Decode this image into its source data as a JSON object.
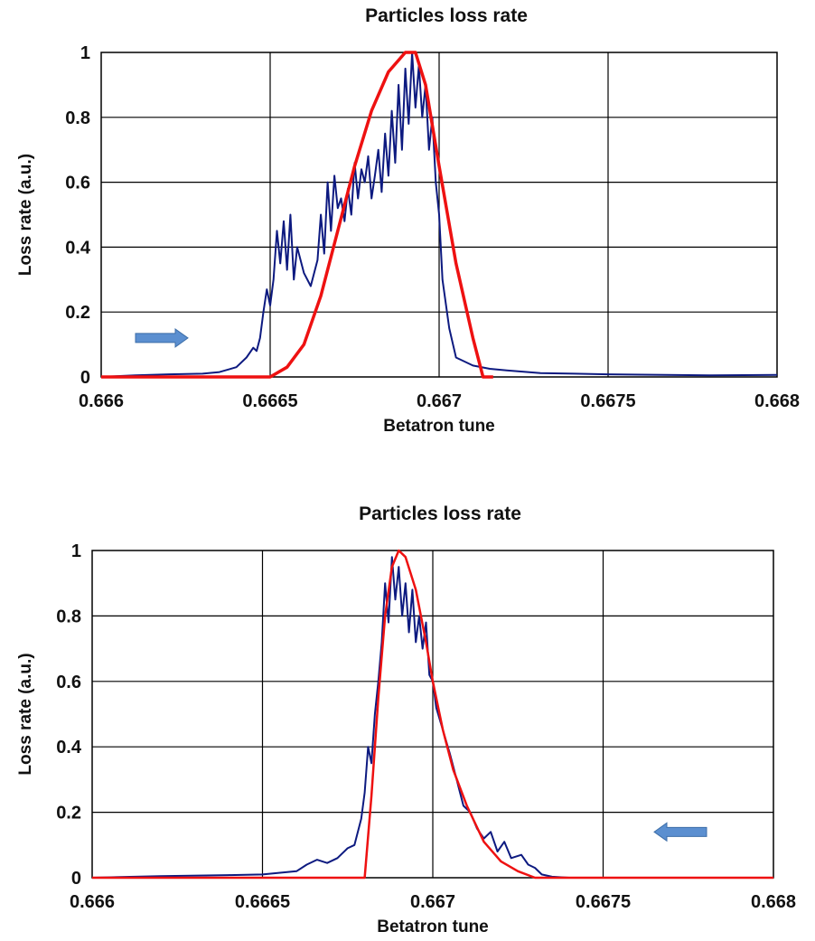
{
  "chart_data": [
    {
      "type": "line",
      "title": "Particles loss rate",
      "xlabel": "Betatron tune",
      "ylabel": "Loss rate (a.u.)",
      "xlim": [
        0.666,
        0.668
      ],
      "ylim": [
        0,
        1
      ],
      "x_ticks": [
        "0.666",
        "0.6665",
        "0.667",
        "0.6675",
        "0.668"
      ],
      "y_ticks": [
        "0",
        "0.2",
        "0.4",
        "0.6",
        "0.8",
        "1"
      ],
      "grid": true,
      "annotation": "arrow pointing right",
      "series": [
        {
          "color": "#0d1a80",
          "points": [
            [
              0.666,
              0.0
            ],
            [
              0.6661,
              0.005
            ],
            [
              0.6662,
              0.008
            ],
            [
              0.6663,
              0.01
            ],
            [
              0.66635,
              0.015
            ],
            [
              0.6664,
              0.03
            ],
            [
              0.66643,
              0.06
            ],
            [
              0.66645,
              0.09
            ],
            [
              0.66646,
              0.08
            ],
            [
              0.66647,
              0.12
            ],
            [
              0.66648,
              0.2
            ],
            [
              0.66649,
              0.27
            ],
            [
              0.6665,
              0.22
            ],
            [
              0.66651,
              0.3
            ],
            [
              0.66652,
              0.45
            ],
            [
              0.66653,
              0.35
            ],
            [
              0.66654,
              0.48
            ],
            [
              0.66655,
              0.33
            ],
            [
              0.66656,
              0.5
            ],
            [
              0.66657,
              0.3
            ],
            [
              0.66658,
              0.4
            ],
            [
              0.6666,
              0.32
            ],
            [
              0.66662,
              0.28
            ],
            [
              0.66664,
              0.36
            ],
            [
              0.66665,
              0.5
            ],
            [
              0.66666,
              0.38
            ],
            [
              0.66667,
              0.6
            ],
            [
              0.66668,
              0.45
            ],
            [
              0.66669,
              0.62
            ],
            [
              0.6667,
              0.52
            ],
            [
              0.66671,
              0.55
            ],
            [
              0.66672,
              0.48
            ],
            [
              0.66673,
              0.58
            ],
            [
              0.66674,
              0.5
            ],
            [
              0.66675,
              0.66
            ],
            [
              0.66676,
              0.55
            ],
            [
              0.66677,
              0.64
            ],
            [
              0.66678,
              0.6
            ],
            [
              0.66679,
              0.68
            ],
            [
              0.6668,
              0.55
            ],
            [
              0.66681,
              0.62
            ],
            [
              0.66682,
              0.7
            ],
            [
              0.66683,
              0.57
            ],
            [
              0.66684,
              0.75
            ],
            [
              0.66685,
              0.62
            ],
            [
              0.66686,
              0.82
            ],
            [
              0.66687,
              0.66
            ],
            [
              0.66688,
              0.9
            ],
            [
              0.66689,
              0.7
            ],
            [
              0.6669,
              0.95
            ],
            [
              0.66691,
              0.78
            ],
            [
              0.66692,
              1.0
            ],
            [
              0.66693,
              0.83
            ],
            [
              0.66694,
              0.96
            ],
            [
              0.66695,
              0.8
            ],
            [
              0.66696,
              0.9
            ],
            [
              0.66697,
              0.7
            ],
            [
              0.66698,
              0.8
            ],
            [
              0.66699,
              0.6
            ],
            [
              0.667,
              0.5
            ],
            [
              0.66701,
              0.3
            ],
            [
              0.66703,
              0.15
            ],
            [
              0.66705,
              0.06
            ],
            [
              0.6671,
              0.035
            ],
            [
              0.66715,
              0.025
            ],
            [
              0.6672,
              0.02
            ],
            [
              0.6673,
              0.012
            ],
            [
              0.6674,
              0.01
            ],
            [
              0.6675,
              0.008
            ],
            [
              0.6676,
              0.007
            ],
            [
              0.6678,
              0.005
            ],
            [
              0.668,
              0.006
            ]
          ]
        },
        {
          "color": "#ee1111",
          "points": [
            [
              0.666,
              0.0
            ],
            [
              0.6665,
              0.0
            ],
            [
              0.66655,
              0.03
            ],
            [
              0.6666,
              0.1
            ],
            [
              0.66665,
              0.25
            ],
            [
              0.6667,
              0.45
            ],
            [
              0.66675,
              0.65
            ],
            [
              0.6668,
              0.82
            ],
            [
              0.66685,
              0.94
            ],
            [
              0.6669,
              1.0
            ],
            [
              0.66693,
              1.0
            ],
            [
              0.66696,
              0.9
            ],
            [
              0.667,
              0.65
            ],
            [
              0.66705,
              0.35
            ],
            [
              0.6671,
              0.12
            ],
            [
              0.66713,
              0.0
            ],
            [
              0.66716,
              0.0
            ]
          ]
        }
      ]
    },
    {
      "type": "line",
      "title": "Particles loss rate",
      "xlabel": "Betatron tune",
      "ylabel": "Loss rate (a.u.)",
      "xlim": [
        0.666,
        0.668
      ],
      "ylim": [
        0,
        1
      ],
      "x_ticks": [
        "0.666",
        "0.6665",
        "0.667",
        "0.6675",
        "0.668"
      ],
      "y_ticks": [
        "0",
        "0.2",
        "0.4",
        "0.6",
        "0.8",
        "1"
      ],
      "grid": true,
      "annotation": "arrow pointing left",
      "series": [
        {
          "color": "#0d1a80",
          "points": [
            [
              0.666,
              0.0
            ],
            [
              0.6662,
              0.005
            ],
            [
              0.6664,
              0.008
            ],
            [
              0.6665,
              0.01
            ],
            [
              0.6666,
              0.02
            ],
            [
              0.66663,
              0.04
            ],
            [
              0.66666,
              0.055
            ],
            [
              0.66669,
              0.045
            ],
            [
              0.66672,
              0.06
            ],
            [
              0.66675,
              0.09
            ],
            [
              0.66677,
              0.1
            ],
            [
              0.66679,
              0.18
            ],
            [
              0.6668,
              0.26
            ],
            [
              0.66681,
              0.4
            ],
            [
              0.66682,
              0.35
            ],
            [
              0.66683,
              0.5
            ],
            [
              0.66684,
              0.6
            ],
            [
              0.66685,
              0.72
            ],
            [
              0.66686,
              0.9
            ],
            [
              0.66687,
              0.78
            ],
            [
              0.66688,
              0.98
            ],
            [
              0.66689,
              0.85
            ],
            [
              0.6669,
              0.95
            ],
            [
              0.66691,
              0.8
            ],
            [
              0.66692,
              0.9
            ],
            [
              0.66693,
              0.75
            ],
            [
              0.66694,
              0.88
            ],
            [
              0.66695,
              0.72
            ],
            [
              0.66696,
              0.8
            ],
            [
              0.66697,
              0.7
            ],
            [
              0.66698,
              0.78
            ],
            [
              0.66699,
              0.62
            ],
            [
              0.667,
              0.6
            ],
            [
              0.66701,
              0.52
            ],
            [
              0.66703,
              0.45
            ],
            [
              0.66705,
              0.38
            ],
            [
              0.66707,
              0.3
            ],
            [
              0.66709,
              0.22
            ],
            [
              0.66711,
              0.2
            ],
            [
              0.66713,
              0.15
            ],
            [
              0.66715,
              0.12
            ],
            [
              0.66717,
              0.14
            ],
            [
              0.66719,
              0.08
            ],
            [
              0.66721,
              0.11
            ],
            [
              0.66723,
              0.06
            ],
            [
              0.66726,
              0.07
            ],
            [
              0.66728,
              0.04
            ],
            [
              0.6673,
              0.03
            ],
            [
              0.66732,
              0.01
            ],
            [
              0.66735,
              0.003
            ],
            [
              0.6674,
              0.0
            ],
            [
              0.668,
              0.0
            ]
          ]
        },
        {
          "color": "#ee1111",
          "points": [
            [
              0.666,
              0.0
            ],
            [
              0.6668,
              0.0
            ],
            [
              0.66682,
              0.25
            ],
            [
              0.66684,
              0.55
            ],
            [
              0.66686,
              0.8
            ],
            [
              0.66688,
              0.95
            ],
            [
              0.6669,
              1.0
            ],
            [
              0.66692,
              0.98
            ],
            [
              0.66695,
              0.88
            ],
            [
              0.66698,
              0.72
            ],
            [
              0.667,
              0.6
            ],
            [
              0.66703,
              0.45
            ],
            [
              0.66706,
              0.33
            ],
            [
              0.6671,
              0.22
            ],
            [
              0.66715,
              0.11
            ],
            [
              0.6672,
              0.05
            ],
            [
              0.66725,
              0.02
            ],
            [
              0.6673,
              0.0
            ],
            [
              0.668,
              0.0
            ]
          ]
        }
      ]
    }
  ]
}
